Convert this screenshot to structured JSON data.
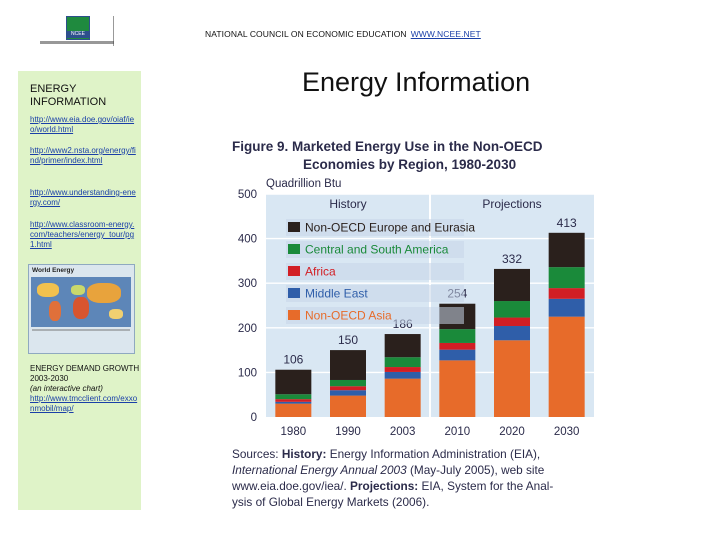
{
  "header": {
    "org": "NATIONAL COUNCIL ON ECONOMIC EDUCATION",
    "url": "WWW.NCEE.NET",
    "logo_text": "NCEE",
    "logo_caption": "National Council on Economic Education"
  },
  "sidebar": {
    "title": "ENERGY INFORMATION",
    "links": [
      "http://www.eia.doe.gov/oiaf/ieo/world.html",
      "http://www2.nsta.org/energy/find/primer/index.html",
      "http://www.understanding-energy.com/",
      "http://www.classroom-energy.com/teachers/energy_tour/pg1.html"
    ],
    "map_title": "World Energy",
    "demand_title": "ENERGY DEMAND GROWTH 2003-2030",
    "demand_note": "(an interactive chart)",
    "demand_link": "http://www.tmcclient.com/exxonmobil/map/"
  },
  "main": {
    "title": "Energy Information"
  },
  "colors": {
    "sidebar_bg": "#dff3c8",
    "chart_bg": "#d9e7f3",
    "link": "#1a3fa8",
    "series": [
      "#e76b2a",
      "#2f5ea9",
      "#d21e24",
      "#1a8a3a",
      "#2a201c"
    ]
  },
  "chart_data": {
    "type": "bar",
    "stacked": true,
    "title_line1": "Figure 9.  Marketed Energy Use in the Non-OECD",
    "title_line2": "Economies by Region, 1980-2030",
    "ylabel": "Quadrillion Btu",
    "ylim": [
      0,
      500
    ],
    "yticks": [
      0,
      100,
      200,
      300,
      400,
      500
    ],
    "categories": [
      "1980",
      "1990",
      "2003",
      "2010",
      "2020",
      "2030"
    ],
    "totals": [
      106,
      150,
      186,
      254,
      332,
      413
    ],
    "section_labels": [
      "History",
      "Projections"
    ],
    "history_count": 3,
    "series": [
      {
        "name": "Non-OECD Asia",
        "color": "#e76b2a",
        "values": [
          30,
          48,
          86,
          127,
          172,
          225
        ]
      },
      {
        "name": "Middle East",
        "color": "#2f5ea9",
        "values": [
          4,
          12,
          15,
          24,
          32,
          40
        ]
      },
      {
        "name": "Africa",
        "color": "#d21e24",
        "values": [
          6,
          9,
          11,
          15,
          19,
          24
        ]
      },
      {
        "name": "Central and South America",
        "color": "#1a8a3a",
        "values": [
          11,
          14,
          22,
          31,
          37,
          47
        ]
      },
      {
        "name": "Non-OECD Europe and Eurasia",
        "color": "#2a201c",
        "values": [
          55,
          67,
          52,
          57,
          72,
          77
        ]
      }
    ],
    "legend_order": [
      "Non-OECD Europe and Eurasia",
      "Central and South America",
      "Africa",
      "Middle East",
      "Non-OECD Asia"
    ],
    "legend_placement": "top-left",
    "source_lines": [
      [
        "Sources: ",
        "History:",
        " Energy Information Administration (EIA),"
      ],
      [
        "International Energy Annual 2003",
        " (May-July 2005), web site"
      ],
      [
        "www.eia.doe.gov/iea/. ",
        "Projections:",
        " EIA, System for the Anal-"
      ],
      [
        "ysis of Global Energy Markets (2006)."
      ]
    ]
  }
}
